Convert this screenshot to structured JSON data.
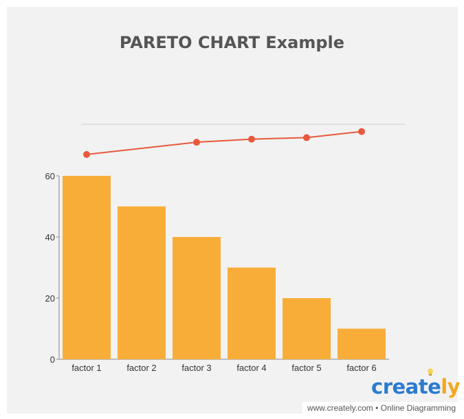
{
  "chart_data": {
    "type": "bar",
    "title": "PARETO CHART Example",
    "categories": [
      "factor 1",
      "factor 2",
      "factor 3",
      "factor 4",
      "factor 5",
      "factor 6"
    ],
    "series": [
      {
        "type": "bar",
        "values": [
          60,
          50,
          40,
          30,
          20,
          10
        ],
        "color": "#f9ad39"
      },
      {
        "type": "line",
        "values": [
          67,
          null,
          71,
          72,
          72.5,
          74.5
        ],
        "color": "#e8583a"
      }
    ],
    "y_ticks": [
      "0",
      "20",
      "40",
      "60"
    ],
    "ylim": [
      0,
      80
    ],
    "grid": false
  },
  "brand": {
    "name_part": "create",
    "name_accent": "ly"
  },
  "footer": {
    "text": "www.creately.com • Online Diagramming"
  }
}
